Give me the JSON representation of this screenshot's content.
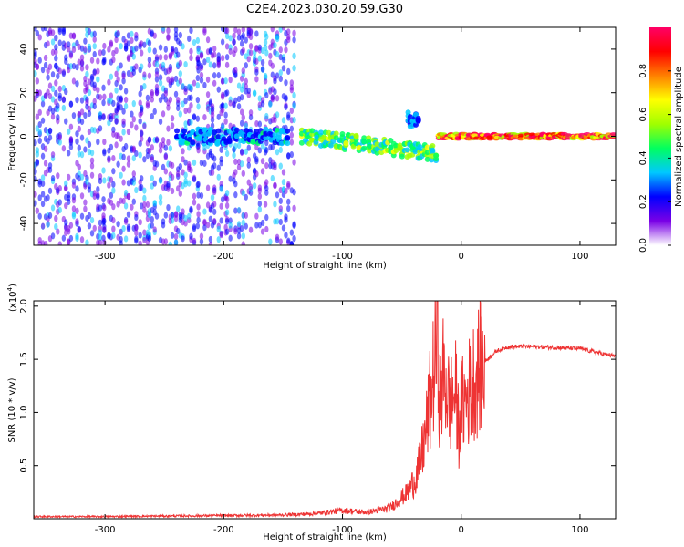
{
  "title": "C2E4.2023.030.20.59.G30",
  "chart_data": [
    {
      "type": "heatmap",
      "xlabel": "Height of straight line (km)",
      "ylabel": "Frequency (Hz)",
      "xlim": [
        -360,
        130
      ],
      "ylim": [
        -50,
        50
      ],
      "xticks": [
        -300,
        -200,
        -100,
        0,
        100
      ],
      "yticks": [
        -40,
        -20,
        0,
        20,
        40
      ],
      "colorbar": {
        "label": "Normalized spectral amplitude",
        "range": [
          0.0,
          1.0
        ],
        "ticks": [
          "0.0",
          "0.2",
          "0.4",
          "0.6",
          "0.8"
        ],
        "colors": [
          "#ffffff",
          "#7a00e6",
          "#0000ff",
          "#00c8ff",
          "#00ff60",
          "#a0ff00",
          "#ffff00",
          "#ff8000",
          "#ff0000",
          "#ff0066"
        ]
      },
      "features": [
        {
          "x_range": [
            -360,
            -140
          ],
          "f_range": [
            -50,
            50
          ],
          "amplitude": 0.15
        },
        {
          "x_range": [
            -240,
            -145
          ],
          "f_center": 0,
          "amplitude": 0.35
        },
        {
          "x_range": [
            -135,
            -20
          ],
          "f_center_start": 0,
          "f_center_end": -8,
          "amplitude": 0.55
        },
        {
          "x_range": [
            -45,
            -35
          ],
          "f_center": 8,
          "amplitude": 0.3
        },
        {
          "x_range": [
            -20,
            130
          ],
          "f_center": 0,
          "amplitude": 0.95
        }
      ]
    },
    {
      "type": "line",
      "xlabel": "Height of straight line (km)",
      "ylabel": "SNR (10 * v/v)",
      "yscale_label": "(x10",
      "yscale_exp": "4",
      "yscale_close": ")",
      "xlim": [
        -360,
        130
      ],
      "ylim": [
        0,
        2.05
      ],
      "xticks": [
        -300,
        -200,
        -100,
        0,
        100
      ],
      "yticks": [
        0.5,
        1.0,
        1.5,
        2.0
      ],
      "ytick_labels": [
        "0.5",
        "1.0",
        "1.5",
        "2.0"
      ],
      "color": "#ee3333",
      "series": [
        {
          "x": [
            -360,
            -300,
            -250,
            -200,
            -150,
            -120,
            -100,
            -80,
            -60,
            -50,
            -45,
            -40,
            -35,
            -30,
            -27,
            -25,
            -22,
            -20,
            -18,
            -15,
            -12,
            -10,
            -8,
            -5,
            -2,
            0,
            5,
            10,
            15,
            20,
            30,
            40,
            60,
            80,
            100,
            120,
            130
          ],
          "y": [
            0.02,
            0.02,
            0.025,
            0.03,
            0.035,
            0.05,
            0.08,
            0.06,
            0.1,
            0.2,
            0.25,
            0.35,
            0.5,
            0.8,
            1.05,
            1.2,
            1.5,
            1.7,
            1.1,
            1.35,
            1.25,
            1.05,
            1.1,
            1.2,
            0.85,
            1.05,
            1.15,
            1.3,
            1.4,
            1.48,
            1.58,
            1.62,
            1.62,
            1.61,
            1.6,
            1.55,
            1.53
          ]
        }
      ]
    }
  ]
}
